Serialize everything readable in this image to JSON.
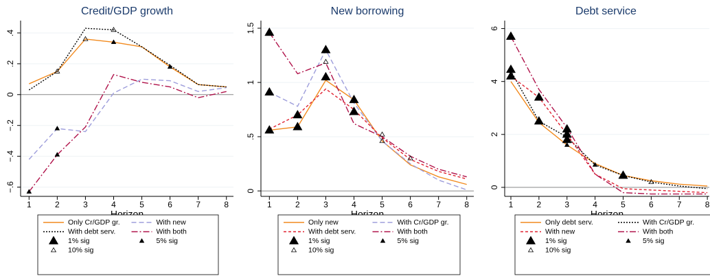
{
  "chart_data": [
    {
      "type": "line",
      "title": "Credit/GDP growth",
      "x_label": "Horizon",
      "x": [
        1,
        2,
        3,
        4,
        5,
        6,
        7,
        8
      ],
      "xlim": [
        0.7,
        8.25
      ],
      "xticks": [
        1,
        2,
        3,
        4,
        5,
        6,
        7,
        8
      ],
      "ylim": [
        -0.66,
        0.48
      ],
      "yticks": [
        {
          "value": -0.6,
          "label": "−.6"
        },
        {
          "value": -0.4,
          "label": "−.4"
        },
        {
          "value": -0.2,
          "label": "−.2"
        },
        0,
        {
          "value": 0.2,
          "label": ".2"
        },
        {
          "value": 0.4,
          "label": ".4"
        }
      ],
      "grid": true,
      "hline": 0,
      "series": [
        {
          "name": "Only Cr/GDP gr.",
          "color": "#f28a1e",
          "dash": "solid",
          "values": [
            0.07,
            0.15,
            0.36,
            0.34,
            0.31,
            0.18,
            0.065,
            0.05
          ]
        },
        {
          "name": "With new",
          "color": "#9d9ddb",
          "dash": "dash",
          "values": [
            -0.42,
            -0.22,
            -0.24,
            0.01,
            0.1,
            0.09,
            0.02,
            0.045
          ]
        },
        {
          "name": "With debt serv.",
          "color": "#000000",
          "dash": "dot",
          "values": [
            0.03,
            0.15,
            0.43,
            0.42,
            0.31,
            0.19,
            0.065,
            0.05
          ]
        },
        {
          "name": "With both",
          "color": "#b0124a",
          "dash": "dashdot",
          "values": [
            -0.63,
            -0.39,
            -0.21,
            0.13,
            0.08,
            0.05,
            -0.02,
            0.02
          ]
        }
      ],
      "markers": [
        {
          "name": "1% sig",
          "size": "large",
          "fill": "#000000",
          "x": [],
          "values": []
        },
        {
          "name": "5% sig",
          "size": "small",
          "fill": "#000000",
          "x": [
            1,
            2,
            2,
            4,
            6
          ],
          "values": [
            -0.63,
            -0.22,
            -0.39,
            0.34,
            0.18
          ]
        },
        {
          "name": "10% sig",
          "size": "small",
          "fill": "none",
          "x": [
            2,
            3,
            4
          ],
          "values": [
            0.15,
            0.36,
            0.42
          ]
        }
      ]
    },
    {
      "type": "line",
      "title": "New borrowing",
      "x_label": "Horizon",
      "x": [
        1,
        2,
        3,
        4,
        5,
        6,
        7,
        8
      ],
      "xlim": [
        0.7,
        8.25
      ],
      "xticks": [
        1,
        2,
        3,
        4,
        5,
        6,
        7,
        8
      ],
      "ylim": [
        -0.05,
        1.57
      ],
      "yticks": [
        0,
        {
          "value": 0.5,
          "label": ".5"
        },
        1,
        1.5
      ],
      "grid": true,
      "hline": 0,
      "series": [
        {
          "name": "Only new",
          "color": "#f28a1e",
          "dash": "solid",
          "values": [
            0.56,
            0.59,
            1.02,
            0.84,
            0.46,
            0.24,
            0.13,
            0.06
          ]
        },
        {
          "name": "With Cr/GDP gr.",
          "color": "#9d9ddb",
          "dash": "dash",
          "values": [
            0.91,
            0.78,
            1.3,
            0.81,
            0.46,
            0.25,
            0.1,
            0.01
          ]
        },
        {
          "name": "With debt serv.",
          "color": "#e0202f",
          "dash": "shortdash",
          "values": [
            0.57,
            0.7,
            0.94,
            0.75,
            0.49,
            0.29,
            0.18,
            0.11
          ]
        },
        {
          "name": "With both",
          "color": "#b0124a",
          "dash": "dashdot",
          "values": [
            1.46,
            1.08,
            1.18,
            0.62,
            0.5,
            0.32,
            0.2,
            0.13
          ]
        }
      ],
      "markers": [
        {
          "name": "1% sig",
          "size": "large",
          "fill": "#000000",
          "x": [
            1,
            1,
            1,
            2,
            2,
            3,
            3,
            4,
            4
          ],
          "values": [
            1.46,
            0.91,
            0.56,
            0.7,
            0.59,
            1.3,
            1.05,
            0.84,
            0.73
          ]
        },
        {
          "name": "5% sig",
          "size": "small",
          "fill": "#000000",
          "x": [],
          "values": []
        },
        {
          "name": "10% sig",
          "size": "small",
          "fill": "none",
          "x": [
            3,
            5,
            5,
            6
          ],
          "values": [
            1.19,
            0.52,
            0.46,
            0.3
          ]
        }
      ]
    },
    {
      "type": "line",
      "title": "Debt service",
      "x_label": "Horizon",
      "x": [
        1,
        2,
        3,
        4,
        5,
        6,
        7,
        8
      ],
      "xlim": [
        0.78,
        8.07
      ],
      "xticks": [
        1,
        2,
        3,
        4,
        5,
        6,
        7,
        8
      ],
      "ylim": [
        -0.34,
        6.3
      ],
      "yticks": [
        0,
        2,
        4,
        6
      ],
      "grid": true,
      "hline": 0,
      "series": [
        {
          "name": "Only debt serv.",
          "color": "#f28a1e",
          "dash": "solid",
          "values": [
            4.0,
            2.45,
            1.6,
            0.9,
            0.45,
            0.25,
            0.12,
            0.05
          ]
        },
        {
          "name": "With Cr/GDP gr.",
          "color": "#000000",
          "dash": "dot",
          "values": [
            4.4,
            2.5,
            1.9,
            0.85,
            0.45,
            0.2,
            0.05,
            -0.05
          ]
        },
        {
          "name": "With new",
          "color": "#e0202f",
          "dash": "shortdash",
          "values": [
            4.2,
            3.4,
            2.0,
            0.5,
            -0.05,
            -0.1,
            -0.15,
            -0.2
          ]
        },
        {
          "name": "With both",
          "color": "#b0124a",
          "dash": "dashdot",
          "values": [
            5.7,
            3.7,
            2.25,
            0.5,
            -0.2,
            -0.25,
            -0.25,
            -0.25
          ]
        }
      ],
      "markers": [
        {
          "name": "1% sig",
          "size": "large",
          "fill": "#000000",
          "x": [
            1,
            1,
            1,
            2,
            2,
            3,
            3,
            3,
            5
          ],
          "values": [
            5.7,
            4.45,
            4.2,
            3.4,
            2.5,
            2.2,
            2.0,
            1.8,
            0.45
          ]
        },
        {
          "name": "5% sig",
          "size": "small",
          "fill": "#000000",
          "x": [
            3,
            4
          ],
          "values": [
            1.6,
            0.85
          ]
        },
        {
          "name": "10% sig",
          "size": "small",
          "fill": "none",
          "x": [
            6
          ],
          "values": [
            0.2
          ]
        }
      ]
    }
  ]
}
